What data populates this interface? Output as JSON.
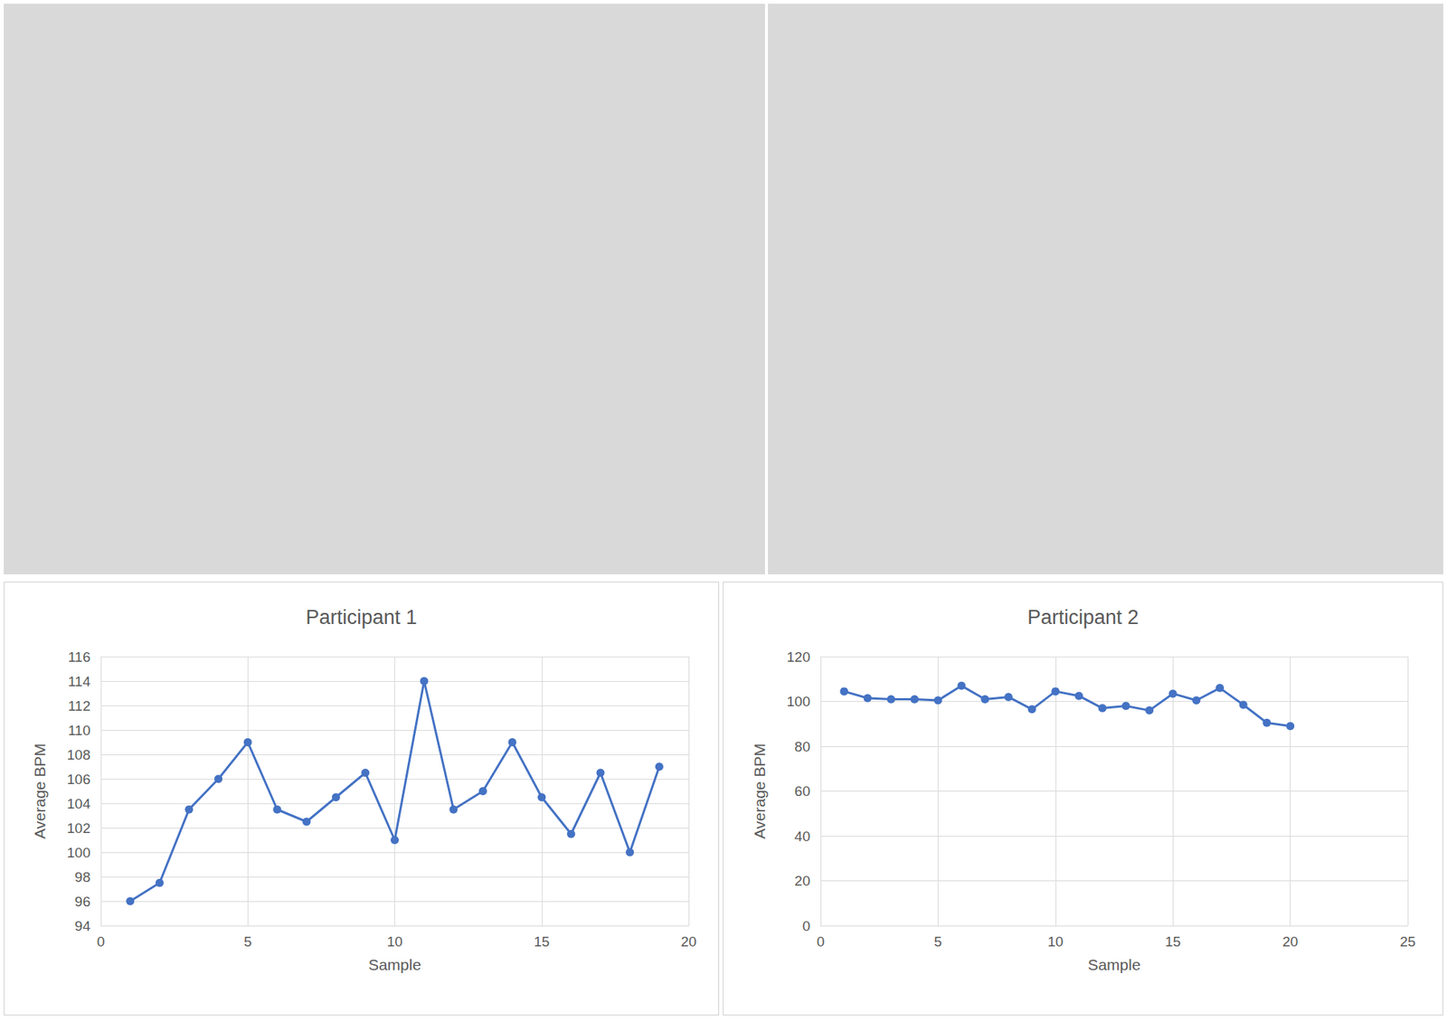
{
  "chart_data": [
    {
      "type": "line",
      "title": "Participant 1",
      "xlabel": "Sample",
      "ylabel": "Average BPM",
      "x": [
        1,
        2,
        3,
        4,
        5,
        6,
        7,
        8,
        9,
        10,
        11,
        12,
        13,
        14,
        15,
        16,
        17,
        18,
        19
      ],
      "values": [
        96,
        97.5,
        103.5,
        106,
        109,
        103.5,
        102.5,
        104.5,
        106.5,
        101,
        114,
        103.5,
        105,
        109,
        104.5,
        101.5,
        106.5,
        100,
        107
      ],
      "color": "#4472c4",
      "marker": "circle",
      "grid": true,
      "xlim": [
        0,
        20
      ],
      "xticks": [
        0,
        5,
        10,
        15,
        20
      ],
      "ylim": [
        94,
        116
      ],
      "yticks": [
        94,
        96,
        98,
        100,
        102,
        104,
        106,
        108,
        110,
        112,
        114,
        116
      ]
    },
    {
      "type": "line",
      "title": "Participant 2",
      "xlabel": "Sample",
      "ylabel": "Average BPM",
      "x": [
        1,
        2,
        3,
        4,
        5,
        6,
        7,
        8,
        9,
        10,
        11,
        12,
        13,
        14,
        15,
        16,
        17,
        18,
        19,
        20
      ],
      "values": [
        104.5,
        101.5,
        101,
        101,
        100.5,
        107,
        101,
        102,
        96.5,
        104.5,
        102.5,
        97,
        98,
        96,
        103.5,
        100.5,
        106,
        98.5,
        90.5,
        89
      ],
      "color": "#4472c4",
      "marker": "circle",
      "grid": true,
      "xlim": [
        0,
        25
      ],
      "xticks": [
        0,
        5,
        10,
        15,
        20,
        25
      ],
      "ylim": [
        0,
        120
      ],
      "yticks": [
        0,
        20,
        40,
        60,
        80,
        100,
        120
      ]
    }
  ]
}
